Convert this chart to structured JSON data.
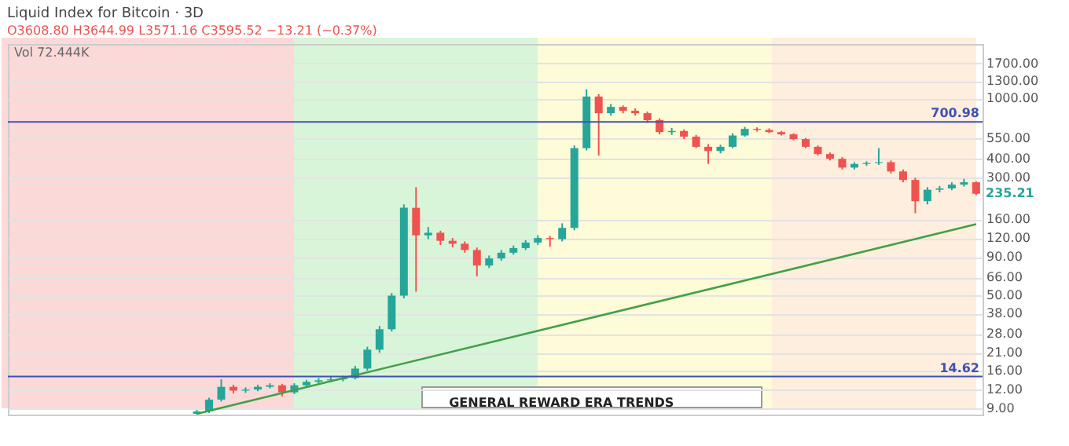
{
  "chart_data": {
    "type": "candlestick",
    "title": "Liquid Index for Bitcoin · 3D",
    "subtitle": "O3608.80 H3644.99 L3571.16 C3595.52 −13.21 (−0.37%)",
    "categories": [
      null,
      null,
      null,
      null,
      null,
      null,
      null,
      null,
      null,
      null,
      null,
      null,
      null,
      null,
      null,
      null,
      null,
      null,
      null,
      null,
      null,
      null,
      null,
      null,
      null,
      null,
      null,
      null,
      null,
      null,
      null,
      null,
      null,
      null,
      null,
      null,
      null,
      null,
      null,
      null,
      null,
      null,
      null,
      null,
      null,
      null,
      null,
      null,
      null,
      null,
      null,
      null,
      null,
      null,
      null,
      null,
      null,
      null,
      null,
      null,
      null,
      null,
      null,
      null,
      null,
      null,
      null,
      null,
      null,
      null,
      null,
      null,
      null,
      null,
      null,
      null,
      null,
      null,
      null,
      null
    ],
    "ohlc": [
      null,
      null,
      null,
      null,
      null,
      null,
      null,
      null,
      null,
      null,
      null,
      null,
      null,
      null,
      null,
      [
        8.3,
        8.8,
        8.2,
        8.6
      ],
      [
        8.6,
        10.6,
        8.4,
        10.3
      ],
      [
        10.3,
        14,
        10,
        12.5
      ],
      [
        12.5,
        12.9,
        11.3,
        11.8
      ],
      [
        11.8,
        12.4,
        11.4,
        12
      ],
      [
        12,
        12.9,
        11.7,
        12.5
      ],
      [
        12.5,
        13.2,
        12.2,
        12.8
      ],
      [
        12.8,
        13.1,
        10.8,
        11.5
      ],
      [
        11.5,
        13.2,
        11.2,
        12.8
      ],
      [
        12.8,
        13.9,
        12.5,
        13.5
      ],
      [
        13.5,
        14.3,
        13.1,
        13.8
      ],
      [
        13.8,
        14.5,
        13.4,
        14
      ],
      [
        14,
        14.8,
        13.6,
        14.3
      ],
      [
        14.3,
        17.2,
        14,
        16.5
      ],
      [
        16.5,
        23,
        16,
        22
      ],
      [
        22,
        31.5,
        21,
        30
      ],
      [
        30,
        52,
        29,
        50
      ],
      [
        50,
        200,
        48,
        190
      ],
      [
        190,
        260,
        53,
        125
      ],
      [
        125,
        142,
        118,
        130
      ],
      [
        130,
        134,
        108,
        115
      ],
      [
        115,
        120,
        104,
        110
      ],
      [
        110,
        114,
        96,
        100
      ],
      [
        100,
        104,
        67,
        79
      ],
      [
        79,
        92,
        76,
        88
      ],
      [
        88,
        100,
        85,
        96
      ],
      [
        96,
        107,
        93,
        103
      ],
      [
        103,
        116,
        100,
        112
      ],
      [
        112,
        125,
        108,
        120
      ],
      [
        120,
        124,
        105,
        118
      ],
      [
        118,
        150,
        114,
        140
      ],
      [
        140,
        490,
        135,
        470
      ],
      [
        470,
        1150,
        455,
        1030
      ],
      [
        1030,
        1070,
        420,
        800
      ],
      [
        800,
        920,
        770,
        880
      ],
      [
        880,
        900,
        800,
        830
      ],
      [
        830,
        860,
        770,
        800
      ],
      [
        800,
        820,
        690,
        720
      ],
      [
        720,
        740,
        580,
        600
      ],
      [
        600,
        640,
        575,
        610
      ],
      [
        610,
        625,
        540,
        560
      ],
      [
        560,
        575,
        470,
        480
      ],
      [
        480,
        500,
        370,
        450
      ],
      [
        450,
        495,
        435,
        480
      ],
      [
        480,
        590,
        470,
        570
      ],
      [
        570,
        650,
        560,
        630
      ],
      [
        630,
        645,
        605,
        620
      ],
      [
        620,
        635,
        590,
        600
      ],
      [
        600,
        610,
        570,
        580
      ],
      [
        580,
        590,
        530,
        540
      ],
      [
        540,
        550,
        470,
        480
      ],
      [
        480,
        490,
        420,
        430
      ],
      [
        430,
        440,
        390,
        400
      ],
      [
        400,
        410,
        340,
        350
      ],
      [
        350,
        380,
        340,
        370
      ],
      [
        370,
        385,
        360,
        375
      ],
      [
        375,
        470,
        365,
        380
      ],
      [
        380,
        390,
        320,
        330
      ],
      [
        330,
        340,
        280,
        290
      ],
      [
        290,
        300,
        175,
        210
      ],
      [
        210,
        260,
        200,
        250
      ],
      [
        250,
        265,
        240,
        255
      ],
      [
        255,
        280,
        248,
        270
      ],
      [
        270,
        295,
        262,
        280
      ],
      [
        280,
        285,
        230,
        235.21
      ]
    ],
    "series": [
      {
        "type": "line",
        "color": "#43a047",
        "values": [
          null,
          null,
          null,
          null,
          null,
          null,
          null,
          null,
          null,
          null,
          null,
          null,
          null,
          null,
          null,
          8.3,
          null,
          null,
          null,
          null,
          null,
          null,
          null,
          null,
          null,
          null,
          null,
          null,
          null,
          null,
          null,
          null,
          null,
          null,
          null,
          null,
          null,
          null,
          null,
          null,
          null,
          null,
          null,
          null,
          null,
          null,
          null,
          null,
          null,
          null,
          null,
          null,
          null,
          null,
          null,
          null,
          null,
          null,
          null,
          null,
          null,
          null,
          null,
          null,
          null,
          null,
          null,
          null,
          null,
          null,
          null,
          null,
          null,
          null,
          null,
          null,
          null,
          null,
          null,
          148
        ]
      }
    ],
    "log": true,
    "ylim": [
      8.2,
      2290
    ],
    "yticks": [
      {
        "value": 1700,
        "label": "1700.00"
      },
      {
        "value": 1300,
        "label": "1300.00"
      },
      {
        "value": 1000,
        "label": "1000.00"
      },
      {
        "value": 550,
        "label": "550.00"
      },
      {
        "value": 400,
        "label": "400.00"
      },
      {
        "value": 300,
        "label": "300.00"
      },
      {
        "value": 160,
        "label": "160.00"
      },
      {
        "value": 120,
        "label": "120.00"
      },
      {
        "value": 90,
        "label": "90.00"
      },
      {
        "value": 66,
        "label": "66.00"
      },
      {
        "value": 50,
        "label": "50.00"
      },
      {
        "value": 38,
        "label": "38.00"
      },
      {
        "value": 28,
        "label": "28.00"
      },
      {
        "value": 21,
        "label": "21.00"
      },
      {
        "value": 16,
        "label": "16.00"
      },
      {
        "value": 12,
        "label": "12.00"
      },
      {
        "value": 9,
        "label": "9.00"
      }
    ],
    "ref_lines": [
      {
        "axis": "y",
        "value": 700.98,
        "label": "700.98",
        "color": "#3f51b5"
      },
      {
        "axis": "y",
        "value": 14.62,
        "label": "14.62",
        "color": "#3f51b5"
      }
    ],
    "annotations": [
      "Vol 72.444K",
      "235.21",
      "GENERAL REWARD ERA TRENDS"
    ],
    "grid": true,
    "tick_labels": "y"
  }
}
